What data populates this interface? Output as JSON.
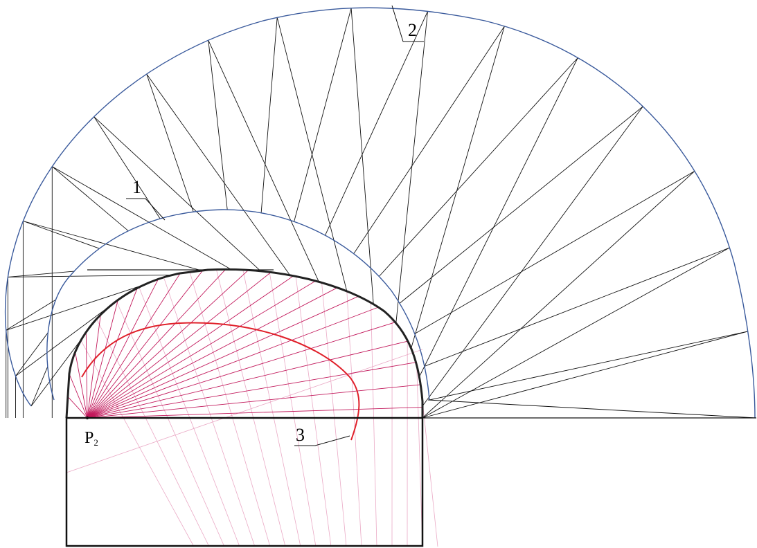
{
  "diagram": {
    "labels": {
      "curve1": "1",
      "curve2": "2",
      "curve3": "3",
      "point_main": "P",
      "point_sub": "2"
    },
    "colors": {
      "outer_curves": "#3a5a9c",
      "chords": "#111111",
      "profile": "#222222",
      "rays": "#c2185b",
      "rays_light": "#e8a0bf",
      "evolute": "#e0202a"
    }
  }
}
